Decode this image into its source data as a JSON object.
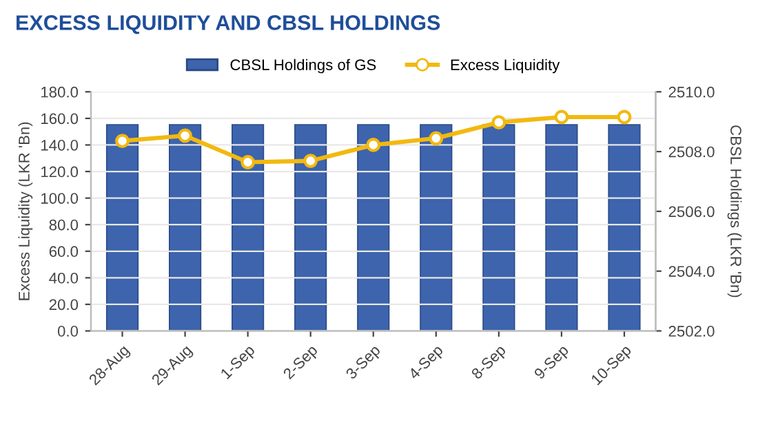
{
  "chart_data": {
    "type": "bar",
    "title": "EXCESS LIQUIDITY AND CBSL HOLDINGS",
    "categories": [
      "28-Aug",
      "29-Aug",
      "1-Sep",
      "2-Sep",
      "3-Sep",
      "4-Sep",
      "8-Sep",
      "9-Sep",
      "10-Sep"
    ],
    "series": [
      {
        "name": "CBSL Holdings of GS",
        "axis": "y2",
        "color": "#3d64ad",
        "values": [
          2508.9,
          2508.9,
          2508.9,
          2508.9,
          2508.9,
          2508.9,
          2508.9,
          2508.9,
          2508.9
        ]
      },
      {
        "name": "Excess Liquidity",
        "type": "line",
        "color": "#f2b90f",
        "marker": "circle",
        "values": [
          143,
          147,
          127,
          128,
          140,
          145,
          157,
          161,
          161
        ]
      }
    ],
    "ylabel": "Excess Liquidity (LKR 'Bn)",
    "y2label": "CBSL Holdings (LKR 'Bn)",
    "ylim": [
      0,
      180
    ],
    "yticks": [
      {
        "value": 0,
        "label": "0.0"
      },
      {
        "value": 20,
        "label": "20.0"
      },
      {
        "value": 40,
        "label": "40.0"
      },
      {
        "value": 60,
        "label": "60.0"
      },
      {
        "value": 80,
        "label": "80.0"
      },
      {
        "value": 100,
        "label": "100.0"
      },
      {
        "value": 120,
        "label": "120.0"
      },
      {
        "value": 140,
        "label": "140.0"
      },
      {
        "value": 160,
        "label": "160.0"
      },
      {
        "value": 180,
        "label": "180.0"
      }
    ],
    "y2lim": [
      2502,
      2510
    ],
    "y2ticks": [
      {
        "value": 2502,
        "label": "2502.0"
      },
      {
        "value": 2504,
        "label": "2504.0"
      },
      {
        "value": 2506,
        "label": "2506.0"
      },
      {
        "value": 2508,
        "label": "2508.0"
      },
      {
        "value": 2510,
        "label": "2510.0"
      }
    ],
    "grid": "y",
    "legend": "top"
  }
}
